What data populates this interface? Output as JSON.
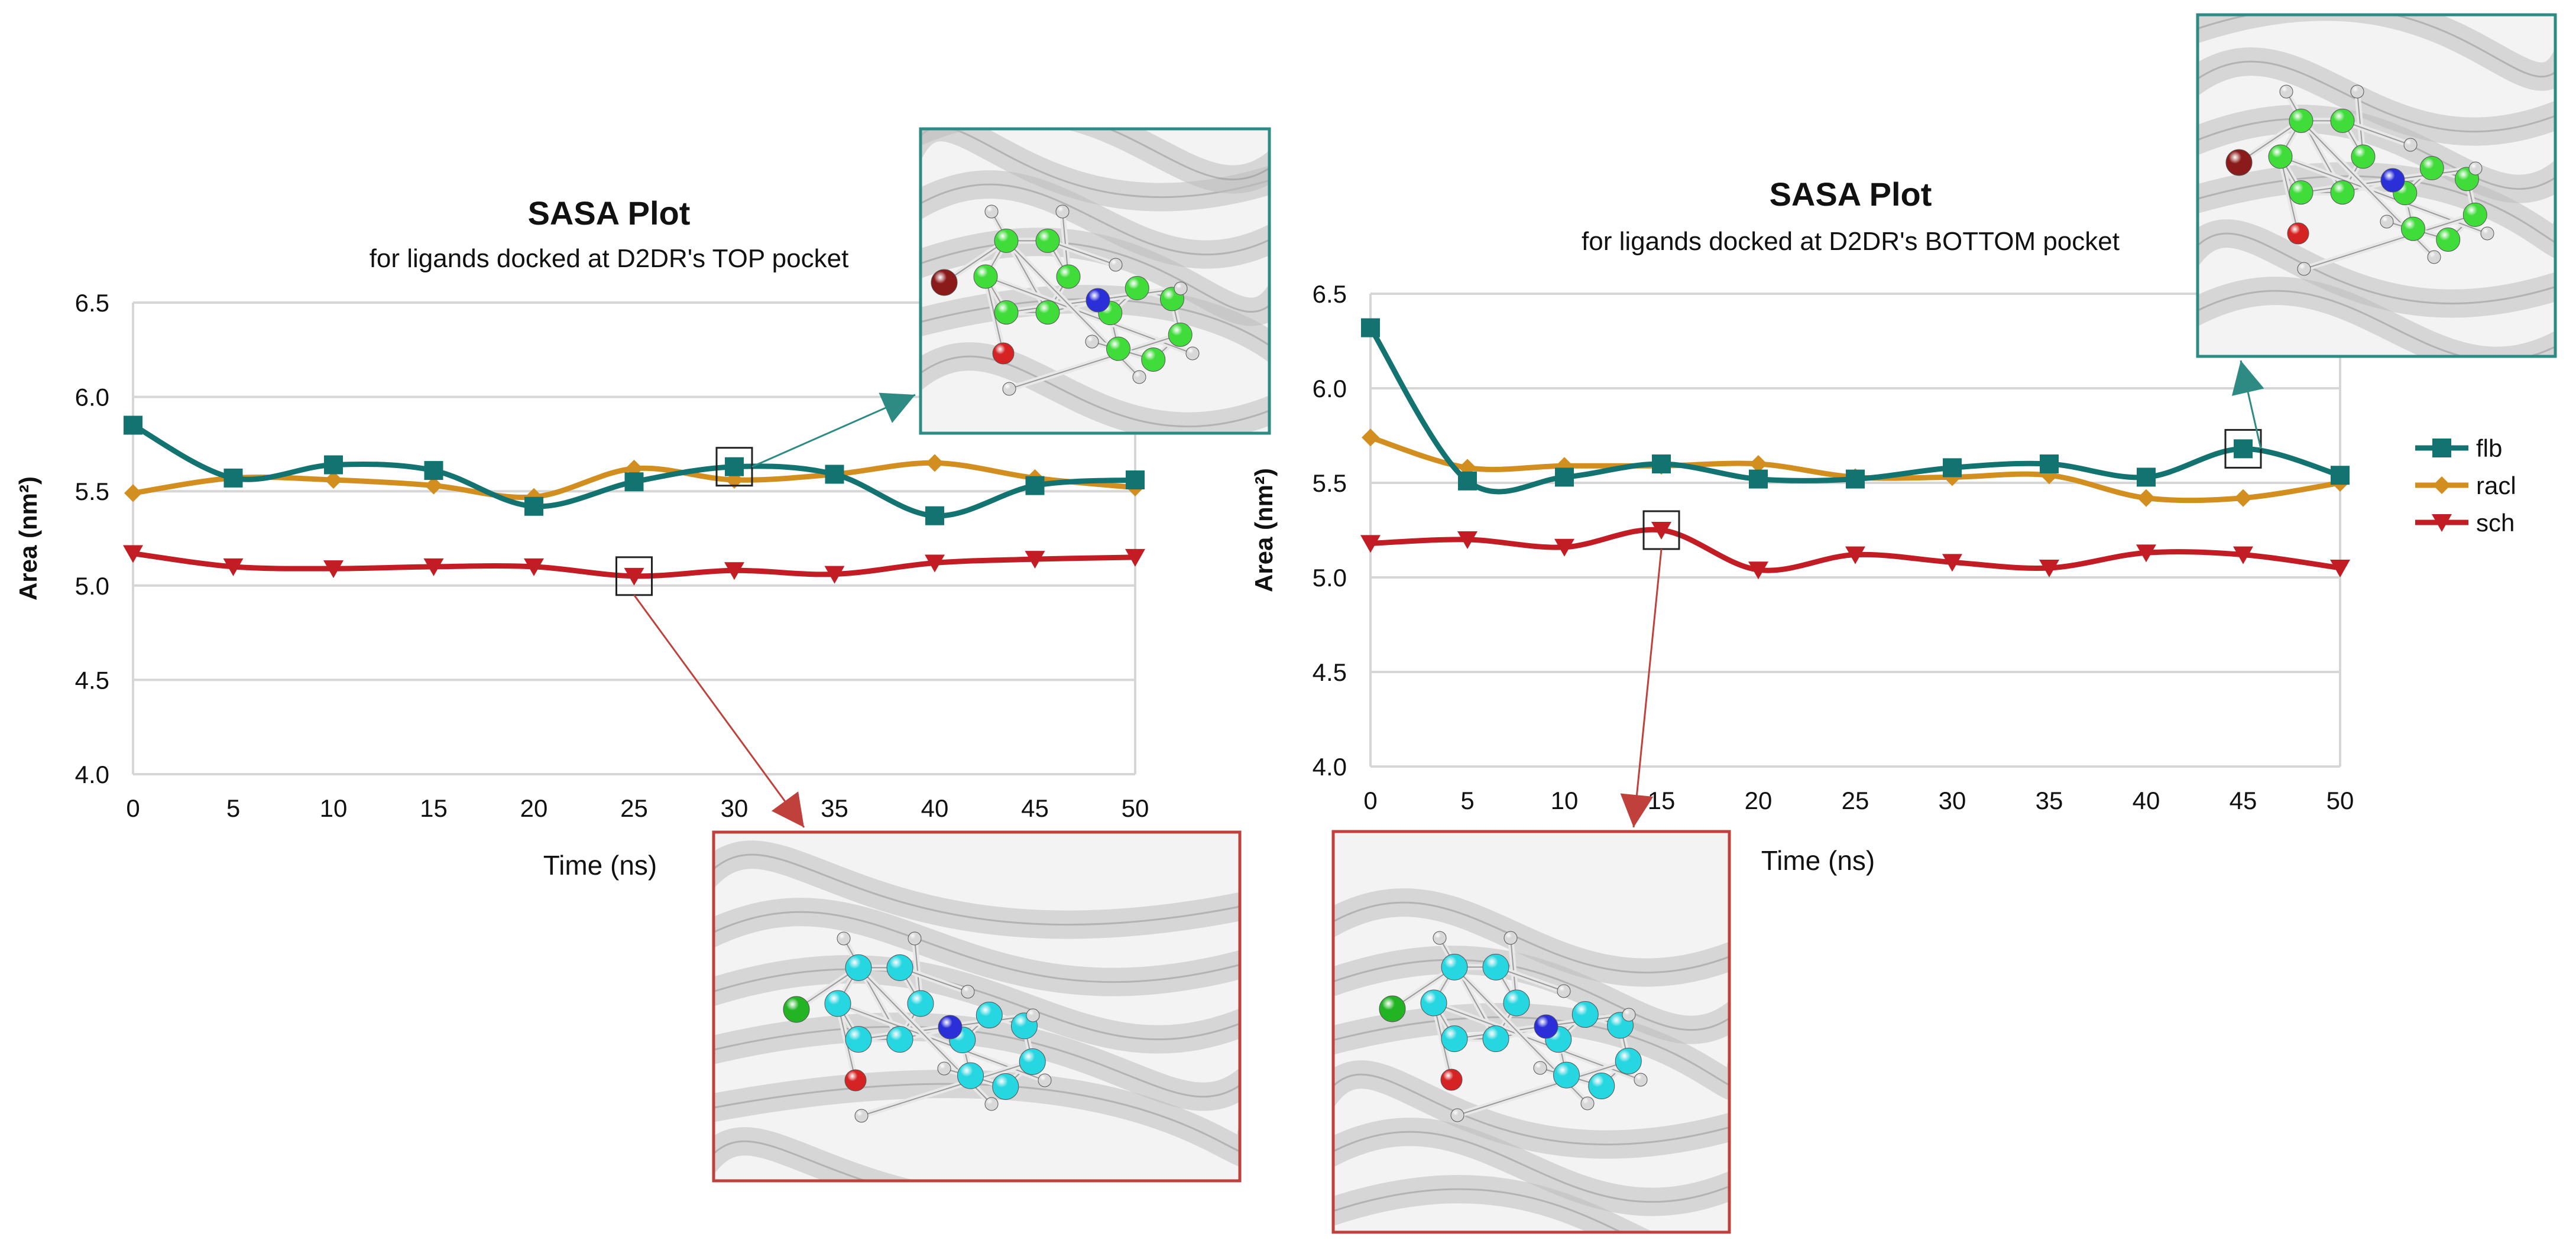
{
  "chart_data": [
    {
      "type": "line",
      "title": "SASA Plot",
      "subtitle": "for ligands docked at D2DR's TOP pocket",
      "xlabel": "Time (ns)",
      "ylabel": "Area (nm²)",
      "xlim": [
        0,
        50
      ],
      "ylim": [
        4.0,
        6.5
      ],
      "x": [
        0,
        5,
        10,
        15,
        20,
        25,
        30,
        35,
        40,
        45,
        50
      ],
      "x_ticks": [
        "0",
        "5",
        "10",
        "15",
        "20",
        "25",
        "30",
        "35",
        "40",
        "45",
        "50"
      ],
      "y_ticks": [
        "4.0",
        "4.5",
        "5.0",
        "5.5",
        "6.0",
        "6.5"
      ],
      "grid": true,
      "series": [
        {
          "name": "flb",
          "values": [
            5.85,
            5.57,
            5.64,
            5.61,
            5.42,
            5.55,
            5.63,
            5.59,
            5.37,
            5.53,
            5.56
          ]
        },
        {
          "name": "racl",
          "values": [
            5.49,
            5.57,
            5.56,
            5.53,
            5.47,
            5.62,
            5.56,
            5.59,
            5.65,
            5.57,
            5.52
          ]
        },
        {
          "name": "sch",
          "values": [
            5.17,
            5.1,
            5.09,
            5.1,
            5.1,
            5.05,
            5.08,
            5.06,
            5.12,
            5.14,
            5.15
          ]
        }
      ],
      "highlights": [
        {
          "series": "flb",
          "x": 30,
          "inset": "flb ligand pose (top pocket)"
        },
        {
          "series": "sch",
          "x": 25,
          "inset": "sch ligand pose (top pocket)"
        }
      ]
    },
    {
      "type": "line",
      "title": "SASA Plot",
      "subtitle": "for ligands docked at D2DR's BOTTOM pocket",
      "xlabel": "Time (ns)",
      "ylabel": "Area (nm²)",
      "xlim": [
        0,
        50
      ],
      "ylim": [
        4.0,
        6.5
      ],
      "x": [
        0,
        5,
        10,
        15,
        20,
        25,
        30,
        35,
        40,
        45,
        50
      ],
      "x_ticks": [
        "0",
        "5",
        "10",
        "15",
        "20",
        "25",
        "30",
        "35",
        "40",
        "45",
        "50"
      ],
      "y_ticks": [
        "4.0",
        "4.5",
        "5.0",
        "5.5",
        "6.0",
        "6.5"
      ],
      "grid": true,
      "series": [
        {
          "name": "flb",
          "values": [
            6.32,
            5.51,
            5.53,
            5.6,
            5.52,
            5.52,
            5.58,
            5.6,
            5.53,
            5.68,
            5.54
          ]
        },
        {
          "name": "racl",
          "values": [
            5.74,
            5.58,
            5.59,
            5.59,
            5.6,
            5.53,
            5.53,
            5.54,
            5.42,
            5.42,
            5.5
          ]
        },
        {
          "name": "sch",
          "values": [
            5.18,
            5.2,
            5.16,
            5.25,
            5.04,
            5.12,
            5.08,
            5.05,
            5.13,
            5.12,
            5.05
          ]
        }
      ],
      "highlights": [
        {
          "series": "flb",
          "x": 45,
          "inset": "flb ligand pose (bottom pocket)"
        },
        {
          "series": "sch",
          "x": 15,
          "inset": "sch ligand pose (bottom pocket)"
        }
      ]
    }
  ],
  "legend": {
    "position": "right",
    "entries": [
      {
        "name": "flb",
        "marker": "square",
        "color": "#137371"
      },
      {
        "name": "racl",
        "marker": "diamond",
        "color": "#d28e1e"
      },
      {
        "name": "sch",
        "marker": "triangle-down",
        "color": "#c21d24"
      }
    ]
  },
  "colors": {
    "flb": "#137371",
    "racl": "#d28e1e",
    "sch": "#c21d24",
    "grid": "#d6d6d6",
    "inset_flb_border": "#2e8b83",
    "inset_sch_border": "#c0403c",
    "carbon_green": "#3fdc3a",
    "carbon_cyan": "#26d6e0",
    "hydrogen": "#d8d8d8",
    "nitrogen": "#2a2fd8",
    "oxygen": "#d52222",
    "bromine": "#8b1a1a",
    "chlorine": "#22b422",
    "protein": "#bdbdbd"
  }
}
